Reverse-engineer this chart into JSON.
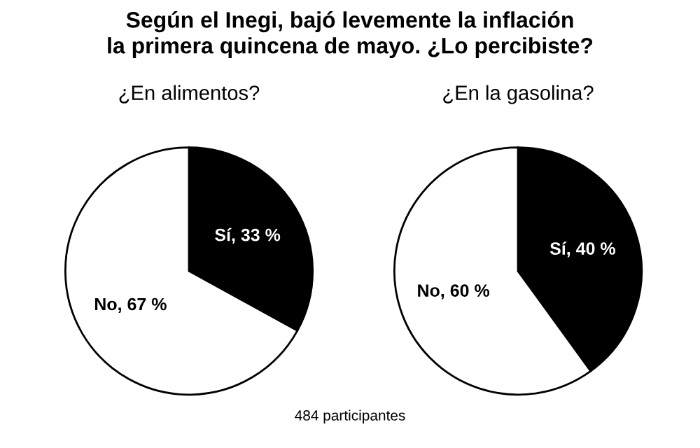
{
  "chart_data": [
    {
      "type": "pie",
      "title": "Según el Inegi, bajó levemente la inflación\nla primera quincena de mayo. ¿Lo percibiste?",
      "subtitle": "¿En alimentos?",
      "categories": [
        "Sí",
        "No"
      ],
      "values": [
        33,
        67
      ],
      "colors": [
        "#000000",
        "#ffffff"
      ],
      "value_labels": [
        "33 %",
        "67 %"
      ],
      "annotations": [
        "484 participantes"
      ]
    },
    {
      "type": "pie",
      "subtitle": "¿En la gasolina?",
      "categories": [
        "Sí",
        "No"
      ],
      "values": [
        40,
        60
      ],
      "colors": [
        "#000000",
        "#ffffff"
      ],
      "value_labels": [
        "40 %",
        "60 %"
      ]
    }
  ]
}
